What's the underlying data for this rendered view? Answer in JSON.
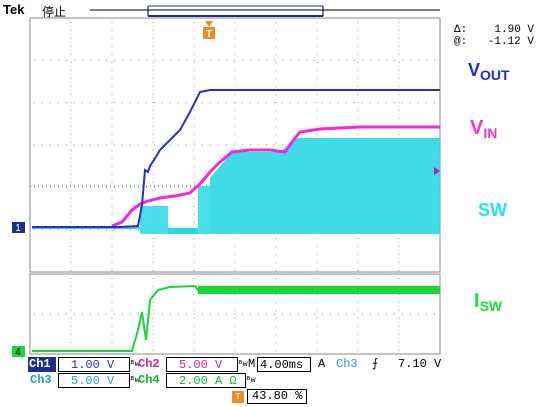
{
  "header": {
    "brand": "Tek",
    "state": "停止"
  },
  "cursor": {
    "delta_label": "Δ:",
    "delta_value": "1.90 V",
    "at_label": "@:",
    "at_value": "-1.12 V"
  },
  "markers": {
    "trigger_pos_glyph": "T",
    "ch1_marker": "1",
    "ch4_marker": "4"
  },
  "labels": {
    "vout": {
      "main": "V",
      "sub": "OUT",
      "color": "#1f2ad8"
    },
    "vin": {
      "main": "V",
      "sub": "IN",
      "color": "#ff2fd0"
    },
    "sw": {
      "main": "SW",
      "color": "#22e6f0"
    },
    "isw": {
      "main": "I",
      "sub": "SW",
      "color": "#18e03a"
    }
  },
  "colors": {
    "ch1": "#2a2fc8",
    "ch2": "#f02ad8",
    "ch3": "#2ad8e6",
    "ch4": "#18d838",
    "trigger": "#f28a1e",
    "grid": "#9aa0a6"
  },
  "status": {
    "ch1_name": "Ch1",
    "ch1_scale": "1.00 V",
    "ch1_bw": "ᴮw",
    "ch2_name": "Ch2",
    "ch2_scale": "5.00 V",
    "ch2_bw": "ᴮw",
    "ch3_name": "Ch3",
    "ch3_scale": "5.00 V",
    "ch3_bw": "ᴮw",
    "ch4_name": "Ch4",
    "ch4_scale": "2.00 A Ω",
    "ch4_bw": "ᴮw",
    "timebase_prefix": "M",
    "timebase": "4.00ms",
    "trig_mode": "A",
    "trig_source": "Ch3",
    "trig_slope": "⨍",
    "trig_level": "7.10 V",
    "trigger_position": "43.80 %"
  }
}
